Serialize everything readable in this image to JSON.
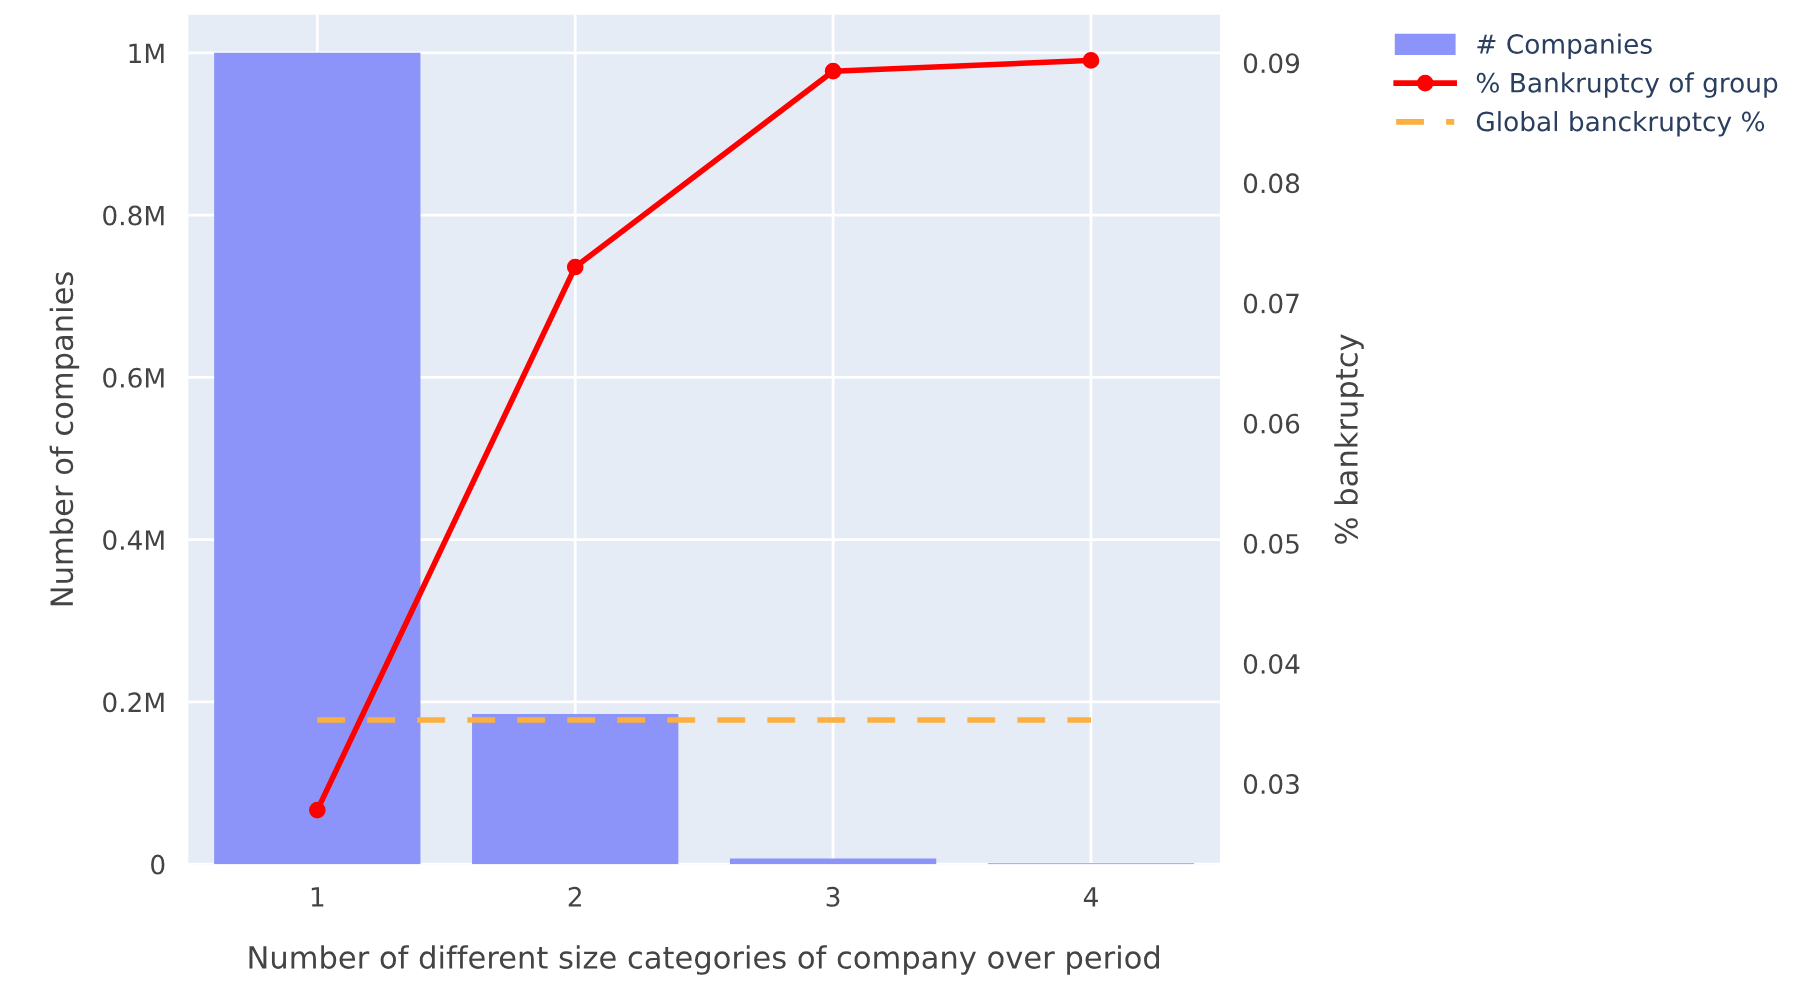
{
  "chart_data": {
    "type": "bar",
    "xlabel": "Number of different size categories of company over period",
    "ylabel": "Number of companies",
    "y2label": "% bankruptcy",
    "categories": [
      "1",
      "2",
      "3",
      "4"
    ],
    "series": [
      {
        "name": "# Companies",
        "color": "#8c94fa",
        "values": [
          1000000,
          185000,
          7000,
          1000
        ]
      },
      {
        "name": "% Bankruptcy of group",
        "type": "line",
        "axis": "y2",
        "color": "#ff0000",
        "marker": "circle",
        "values": [
          0.0278,
          0.073,
          0.0893,
          0.0902
        ]
      },
      {
        "name": "Global banckruptcy %",
        "type": "line",
        "axis": "y2",
        "color": "#fcb040",
        "line_style": "dashed",
        "values": [
          0.0353,
          0.0353,
          0.0353,
          0.0353
        ]
      }
    ],
    "ylim": [
      0,
      1047000
    ],
    "yticks": [
      0,
      {
        "value": 200000,
        "label": "0.2M"
      },
      {
        "value": 400000,
        "label": "0.4M"
      },
      {
        "value": 600000,
        "label": "0.6M"
      },
      {
        "value": 800000,
        "label": "0.8M"
      },
      {
        "value": 1000000,
        "label": "1M"
      }
    ],
    "y2lim": [
      0.0233,
      0.094
    ],
    "y2ticks": [
      0.03,
      0.04,
      0.05,
      0.06,
      0.07,
      0.08,
      0.09
    ],
    "grid": true,
    "legend": "top right"
  }
}
